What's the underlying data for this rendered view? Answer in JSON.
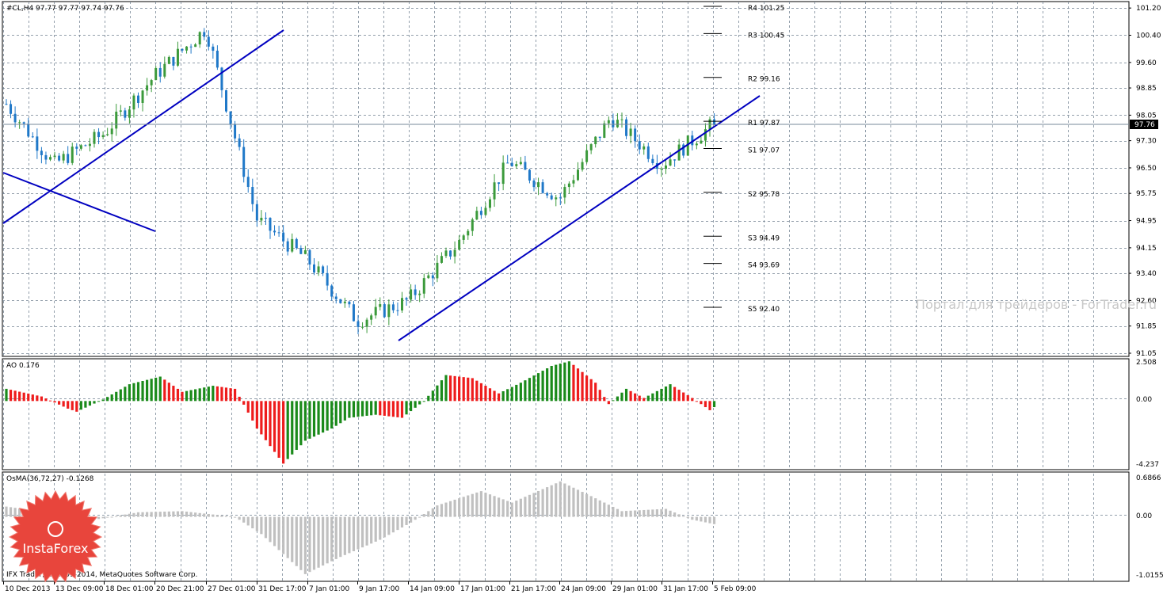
{
  "main_panel": {
    "header": "#CL,H4  97.77 97.77 97.74 97.76",
    "price_tag": "97.76",
    "watermark": "Портал для трейдеров - ForTrader.ru"
  },
  "ao_panel": {
    "header": "AO 0.176"
  },
  "osma_panel": {
    "header": "OsMA(36,72,27) -0.1268",
    "copyright": "IFX Trader, © 2001-2014, MetaQuotes Software Corp."
  },
  "logo": {
    "text": "InstaForex"
  },
  "colors": {
    "bull": "#3b9a3b",
    "bear": "#1f78c8",
    "trendline": "#0000c0",
    "ao_up": "#1a8a1a",
    "ao_down": "#ee1c1c",
    "osma": "#c0c0c0",
    "grid": "#708090",
    "badge": "#e8453c"
  },
  "chart_data": [
    {
      "type": "candlestick",
      "symbol": "#CL",
      "timeframe": "H4",
      "last_bar": {
        "open": 97.77,
        "high": 97.77,
        "low": 97.74,
        "close": 97.76
      },
      "current_price": 97.76,
      "ylim": [
        91.05,
        101.25
      ],
      "y_ticks": [
        "101.20",
        "100.40",
        "99.60",
        "98.85",
        "98.05",
        "97.30",
        "96.50",
        "95.75",
        "94.95",
        "94.15",
        "93.40",
        "92.60",
        "91.85",
        "91.05"
      ],
      "x_ticks": [
        "10 Dec 2013",
        "13 Dec 09:00",
        "18 Dec 01:00",
        "20 Dec 21:00",
        "27 Dec 01:00",
        "31 Dec 17:00",
        "7 Jan 01:00",
        "9 Jan 17:00",
        "14 Jan 09:00",
        "17 Jan 01:00",
        "21 Jan 17:00",
        "24 Jan 09:00",
        "29 Jan 01:00",
        "31 Jan 17:00",
        "5 Feb 09:00"
      ],
      "approx_path": [
        {
          "x": "10 Dec 2013",
          "y": 98.5
        },
        {
          "x": "13 Dec 09:00",
          "y": 96.6
        },
        {
          "x": "18 Dec 01:00",
          "y": 97.5
        },
        {
          "x": "20 Dec 21:00",
          "y": 99.2
        },
        {
          "x": "27 Dec 01:00",
          "y": 100.6
        },
        {
          "x": "31 Dec 17:00",
          "y": 95.0
        },
        {
          "x": "7 Jan 01:00",
          "y": 93.8
        },
        {
          "x": "9 Jan 17:00",
          "y": 92.0
        },
        {
          "x": "14 Jan 09:00",
          "y": 92.6
        },
        {
          "x": "17 Jan 01:00",
          "y": 94.3
        },
        {
          "x": "21 Jan 17:00",
          "y": 96.7
        },
        {
          "x": "24 Jan 09:00",
          "y": 95.6
        },
        {
          "x": "29 Jan 01:00",
          "y": 98.0
        },
        {
          "x": "31 Jan 17:00",
          "y": 96.6
        },
        {
          "x": "5 Feb 09:00",
          "y": 97.76
        }
      ],
      "pivot_levels": [
        {
          "label": "R4 101.25",
          "value": 101.25
        },
        {
          "label": "R3 100.45",
          "value": 100.45
        },
        {
          "label": "R2 99.16",
          "value": 99.16
        },
        {
          "label": "R1 97.87",
          "value": 97.87
        },
        {
          "label": "S1 97.07",
          "value": 97.07
        },
        {
          "label": "S2 95.78",
          "value": 95.78
        },
        {
          "label": "S3 94.49",
          "value": 94.49
        },
        {
          "label": "S4 93.69",
          "value": 93.69
        },
        {
          "label": "S5 92.40",
          "value": 92.4
        }
      ]
    },
    {
      "type": "bar",
      "indicator": "AO",
      "current_value": 0.176,
      "ylim": [
        -4.237,
        2.508
      ],
      "y_ticks": [
        "2.508",
        "0.00",
        "-4.237"
      ]
    },
    {
      "type": "bar",
      "indicator": "OsMA",
      "params": [
        36,
        72,
        27
      ],
      "current_value": -0.1268,
      "ylim": [
        -1.0155,
        0.6866
      ],
      "y_ticks": [
        "0.6866",
        "0.00",
        "-1.0155"
      ]
    }
  ]
}
